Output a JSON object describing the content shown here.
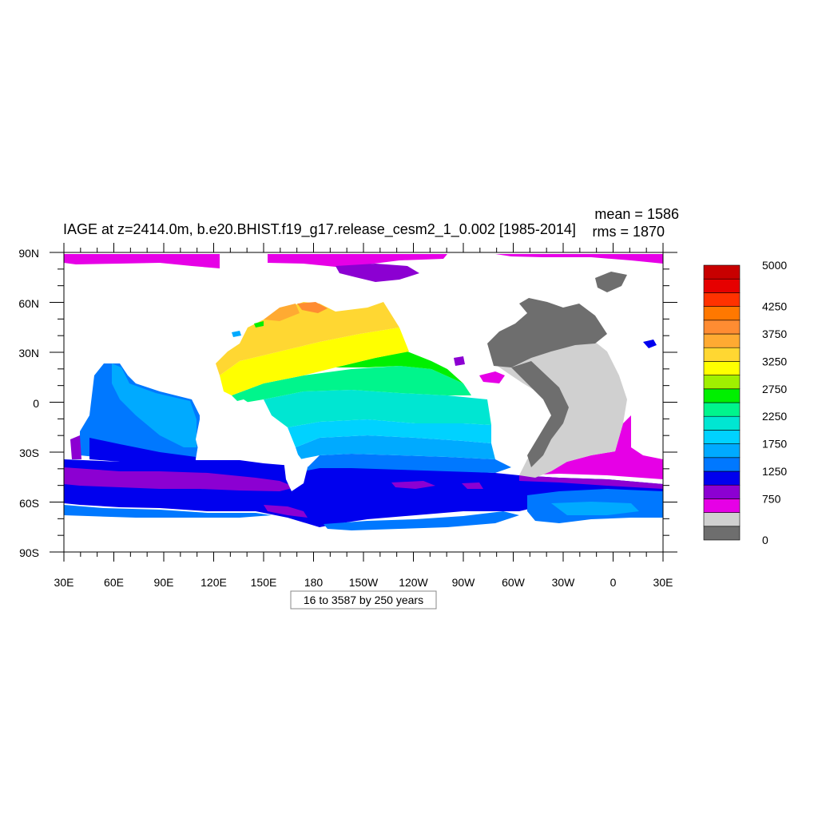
{
  "title": "IAGE at z=2414.0m, b.e20.BHIST.f19_g17.release_cesm2_1_0.002 [1985-2014]",
  "stats": {
    "mean": "mean = 1586",
    "rms": "rms = 1870"
  },
  "contour_info": "16 to 3587 by 250 years",
  "lat_labels": [
    "90N",
    "60N",
    "30N",
    "0",
    "30S",
    "60S",
    "90S"
  ],
  "lon_labels": [
    "30E",
    "60E",
    "90E",
    "120E",
    "150E",
    "180",
    "150W",
    "120W",
    "90W",
    "60W",
    "30W",
    "0",
    "30E"
  ],
  "colorbar": {
    "colors_bottom_to_top": [
      "#6e6e6e",
      "#d0d0d0",
      "#e600e6",
      "#8c00d2",
      "#0000ee",
      "#0078ff",
      "#00aaff",
      "#00d2ff",
      "#00e6d2",
      "#00f58c",
      "#00f000",
      "#a0f000",
      "#ffff00",
      "#ffd732",
      "#ffaa32",
      "#ff8c32",
      "#ff7800",
      "#ff3200",
      "#e60000",
      "#c80000"
    ],
    "labels": [
      {
        "value": 0,
        "text": "0"
      },
      {
        "value": 750,
        "text": "750"
      },
      {
        "value": 1250,
        "text": "1250"
      },
      {
        "value": 1750,
        "text": "1750"
      },
      {
        "value": 2250,
        "text": "2250"
      },
      {
        "value": 2750,
        "text": "2750"
      },
      {
        "value": 3250,
        "text": "3250"
      },
      {
        "value": 3750,
        "text": "3750"
      },
      {
        "value": 4250,
        "text": "4250"
      },
      {
        "value": 5000,
        "text": "5000"
      }
    ]
  },
  "colors": {
    "land": "#ffffff",
    "frame": "#000000"
  }
}
